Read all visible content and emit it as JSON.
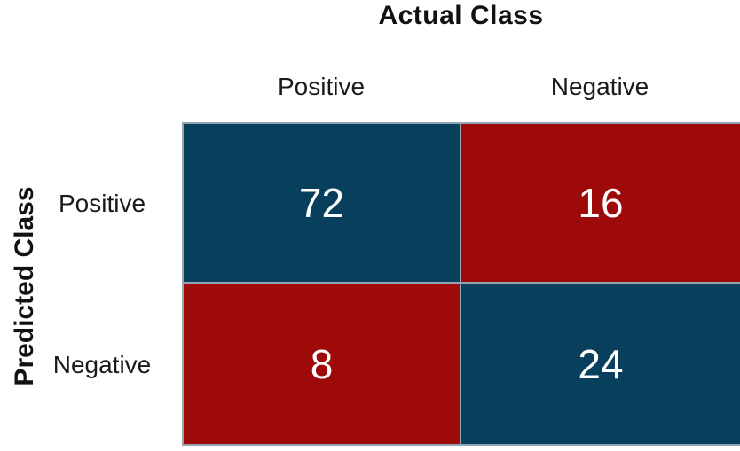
{
  "chart_data": {
    "type": "heatmap",
    "title": "Actual Class",
    "xlabel": "Actual Class",
    "ylabel": "Predicted Class",
    "columns": [
      "Positive",
      "Negative"
    ],
    "rows": [
      "Positive",
      "Negative"
    ],
    "values": [
      [
        72,
        16
      ],
      [
        8,
        24
      ]
    ],
    "legend": "none",
    "colors": {
      "match_cell": "#073f5c",
      "mismatch_cell": "#9e0a0a",
      "cell_border": "#93a4b2",
      "value_text": "#ffffff",
      "label_text": "#111111"
    },
    "cells": [
      {
        "row": "Positive",
        "col": "Positive",
        "value": "72",
        "color": "#073f5c"
      },
      {
        "row": "Positive",
        "col": "Negative",
        "value": "16",
        "color": "#9e0a0a"
      },
      {
        "row": "Negative",
        "col": "Positive",
        "value": "8",
        "color": "#9e0a0a"
      },
      {
        "row": "Negative",
        "col": "Negative",
        "value": "24",
        "color": "#073f5c"
      }
    ]
  }
}
